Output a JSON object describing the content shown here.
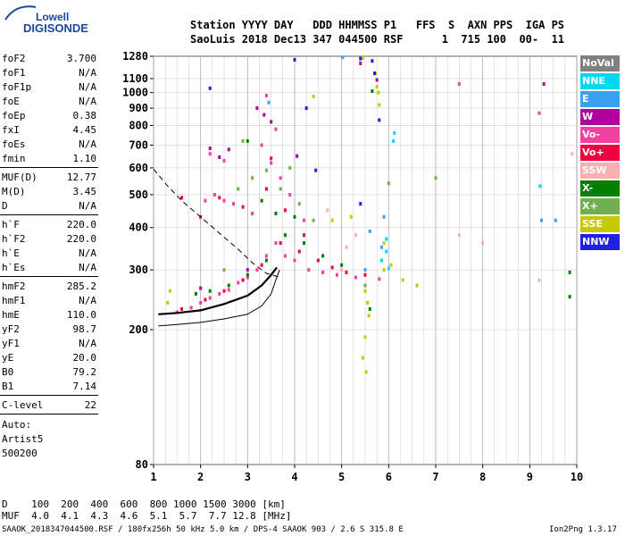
{
  "logo": {
    "line1": "Lowell",
    "line2": "DIGISONDE"
  },
  "header": {
    "line1": "Station YYYY DAY   DDD HHMMSS P1   FFS  S  AXN PPS  IGA PS",
    "line2": "SaoLuis 2018 Dec13 347 044500 RSF      1  715 100  00-  11"
  },
  "params": [
    {
      "label": "foF2",
      "value": "3.700"
    },
    {
      "label": "foF1",
      "value": "N/A"
    },
    {
      "label": "foF1p",
      "value": "N/A"
    },
    {
      "label": "foE",
      "value": "N/A"
    },
    {
      "label": "foEp",
      "value": "0.38"
    },
    {
      "label": "fxI",
      "value": "4.45"
    },
    {
      "label": "foEs",
      "value": "N/A"
    },
    {
      "label": "fmin",
      "value": "1.10"
    },
    {
      "label": "MUF(D)",
      "value": "12.77"
    },
    {
      "label": "M(D)",
      "value": "3.45"
    },
    {
      "label": "D",
      "value": "N/A"
    },
    {
      "label": "h`F",
      "value": "220.0"
    },
    {
      "label": "h`F2",
      "value": "220.0"
    },
    {
      "label": "h`E",
      "value": "N/A"
    },
    {
      "label": "h`Es",
      "value": "N/A"
    },
    {
      "label": "hmF2",
      "value": "285.2"
    },
    {
      "label": "hmF1",
      "value": "N/A"
    },
    {
      "label": "hmE",
      "value": "110.0"
    },
    {
      "label": "yF2",
      "value": "98.7"
    },
    {
      "label": "yF1",
      "value": "N/A"
    },
    {
      "label": "yE",
      "value": "20.0"
    },
    {
      "label": "B0",
      "value": "79.2"
    },
    {
      "label": "B1",
      "value": "7.14"
    },
    {
      "label": "C-level",
      "value": "22"
    }
  ],
  "auto": {
    "line1": "Auto:",
    "line2": "Artist5",
    "line3": "500200"
  },
  "legend": [
    {
      "label": "NoVal",
      "color": "#808080"
    },
    {
      "label": "NNE",
      "color": "#00d8f0"
    },
    {
      "label": "E",
      "color": "#3aa0f0"
    },
    {
      "label": "W",
      "color": "#b000a0"
    },
    {
      "label": "Vo-",
      "color": "#f040a0"
    },
    {
      "label": "Vo+",
      "color": "#f00040"
    },
    {
      "label": "SSW",
      "color": "#f8b0b0"
    },
    {
      "label": "X-",
      "color": "#008000"
    },
    {
      "label": "X+",
      "color": "#70b050"
    },
    {
      "label": "SSE",
      "color": "#c8c800"
    },
    {
      "label": "NNW",
      "color": "#2020e0"
    }
  ],
  "footer": {
    "d_line": "D    100  200  400  600  800 1000 1500 3000 [km]",
    "muf_line": "MUF  4.0  4.1  4.3  4.6  5.1  5.7  7.7 12.8 [MHz]",
    "file_line": "SAAOK_2018347044500.RSF / 180fx256h 50 kHz 5.0 km / DPS-4 SAAOK 903 / 2.6 S 315.8 E",
    "version": "Ion2Png 1.3.17"
  },
  "chart_data": {
    "type": "scatter",
    "title": "",
    "xlabel": "",
    "ylabel": "",
    "xlim": [
      1,
      10
    ],
    "ylim": [
      80,
      1280
    ],
    "y_scale": "log",
    "x_ticks": [
      1,
      2,
      3,
      4,
      5,
      6,
      7,
      8,
      9,
      10
    ],
    "y_ticks": [
      80,
      200,
      300,
      400,
      500,
      600,
      700,
      800,
      900,
      1000,
      1100,
      1280
    ],
    "grid": true,
    "legend_position": "right",
    "series": [
      {
        "name": "NNE",
        "color": "#00d8f0",
        "points": [
          [
            5.85,
            320
          ],
          [
            5.95,
            370
          ],
          [
            5.95,
            340
          ],
          [
            6.12,
            760
          ],
          [
            6.1,
            720
          ],
          [
            9.22,
            530
          ],
          [
            6.0,
            303
          ]
        ]
      },
      {
        "name": "E",
        "color": "#3aa0f0",
        "points": [
          [
            5.5,
            300
          ],
          [
            5.6,
            390
          ],
          [
            5.85,
            350
          ],
          [
            5.9,
            430
          ],
          [
            9.25,
            420
          ],
          [
            9.55,
            420
          ],
          [
            5.02,
            1270
          ],
          [
            3.45,
            935
          ]
        ]
      },
      {
        "name": "W",
        "color": "#b000a0",
        "points": [
          [
            2.2,
            685
          ],
          [
            2.4,
            645
          ],
          [
            2.6,
            680
          ],
          [
            3.2,
            900
          ],
          [
            3.35,
            860
          ],
          [
            3.5,
            820
          ],
          [
            4.05,
            650
          ],
          [
            5.75,
            1090
          ],
          [
            9.3,
            1060
          ],
          [
            5.4,
            1220
          ],
          [
            2.0,
            265
          ],
          [
            3.0,
            300
          ]
        ]
      },
      {
        "name": "Vo-",
        "color": "#f040a0",
        "points": [
          [
            1.5,
            225
          ],
          [
            1.8,
            232
          ],
          [
            2.0,
            240
          ],
          [
            2.2,
            248
          ],
          [
            2.4,
            255
          ],
          [
            2.6,
            262
          ],
          [
            2.8,
            275
          ],
          [
            3.0,
            285
          ],
          [
            3.2,
            300
          ],
          [
            3.4,
            330
          ],
          [
            3.6,
            360
          ],
          [
            3.8,
            330
          ],
          [
            4.0,
            320
          ],
          [
            4.3,
            300
          ],
          [
            4.6,
            295
          ],
          [
            4.9,
            290
          ],
          [
            5.3,
            285
          ],
          [
            5.8,
            282
          ],
          [
            2.1,
            480
          ],
          [
            2.3,
            500
          ],
          [
            2.5,
            480
          ],
          [
            2.7,
            470
          ],
          [
            3.1,
            440
          ],
          [
            2.2,
            660
          ],
          [
            2.5,
            630
          ],
          [
            3.3,
            700
          ],
          [
            3.5,
            620
          ],
          [
            3.7,
            560
          ],
          [
            3.9,
            500
          ],
          [
            4.2,
            420
          ],
          [
            3.6,
            780
          ],
          [
            3.4,
            980
          ],
          [
            7.5,
            1060
          ],
          [
            9.2,
            870
          ]
        ]
      },
      {
        "name": "Vo+",
        "color": "#f00040",
        "points": [
          [
            1.6,
            230
          ],
          [
            2.1,
            245
          ],
          [
            2.5,
            260
          ],
          [
            2.9,
            280
          ],
          [
            3.3,
            310
          ],
          [
            3.7,
            360
          ],
          [
            4.1,
            340
          ],
          [
            4.5,
            320
          ],
          [
            4.8,
            305
          ],
          [
            5.1,
            295
          ],
          [
            5.5,
            290
          ],
          [
            2.4,
            490
          ],
          [
            2.9,
            460
          ],
          [
            3.4,
            520
          ],
          [
            3.8,
            450
          ],
          [
            4.2,
            380
          ],
          [
            3.5,
            640
          ],
          [
            1.6,
            490
          ],
          [
            2.0,
            430
          ]
        ]
      },
      {
        "name": "SSW",
        "color": "#f8b0b0",
        "points": [
          [
            5.1,
            350
          ],
          [
            5.3,
            380
          ],
          [
            7.5,
            380
          ],
          [
            8.0,
            360
          ],
          [
            9.2,
            280
          ],
          [
            9.9,
            660
          ],
          [
            5.0,
            300
          ],
          [
            4.7,
            450
          ]
        ]
      },
      {
        "name": "X-",
        "color": "#008000",
        "points": [
          [
            2.2,
            260
          ],
          [
            2.6,
            270
          ],
          [
            3.0,
            290
          ],
          [
            3.4,
            320
          ],
          [
            3.8,
            380
          ],
          [
            4.2,
            360
          ],
          [
            4.6,
            330
          ],
          [
            5.0,
            310
          ],
          [
            3.0,
            720
          ],
          [
            3.3,
            480
          ],
          [
            3.6,
            440
          ],
          [
            9.85,
            295
          ],
          [
            9.85,
            250
          ],
          [
            5.65,
            1010
          ],
          [
            5.6,
            230
          ],
          [
            1.9,
            255
          ],
          [
            4.0,
            430
          ]
        ]
      },
      {
        "name": "X+",
        "color": "#70b050",
        "points": [
          [
            2.5,
            300
          ],
          [
            2.8,
            520
          ],
          [
            3.1,
            560
          ],
          [
            3.4,
            590
          ],
          [
            3.7,
            520
          ],
          [
            4.1,
            470
          ],
          [
            4.4,
            420
          ],
          [
            5.5,
            270
          ],
          [
            6.0,
            540
          ],
          [
            7.0,
            560
          ],
          [
            2.9,
            720
          ],
          [
            3.9,
            600
          ]
        ]
      },
      {
        "name": "SSE",
        "color": "#c8c800",
        "points": [
          [
            4.4,
            975
          ],
          [
            5.45,
            1265
          ],
          [
            5.75,
            1040
          ],
          [
            5.78,
            1000
          ],
          [
            5.8,
            920
          ],
          [
            5.72,
            1140
          ],
          [
            5.5,
            260
          ],
          [
            5.55,
            240
          ],
          [
            5.58,
            220
          ],
          [
            5.5,
            190
          ],
          [
            5.45,
            165
          ],
          [
            5.52,
            150
          ],
          [
            5.9,
            360
          ],
          [
            5.9,
            300
          ],
          [
            6.05,
            310
          ],
          [
            6.3,
            280
          ],
          [
            6.6,
            270
          ],
          [
            5.2,
            430
          ],
          [
            4.8,
            420
          ],
          [
            1.3,
            240
          ],
          [
            1.35,
            260
          ]
        ]
      },
      {
        "name": "NNW",
        "color": "#2020e0",
        "points": [
          [
            5.65,
            1240
          ],
          [
            4.0,
            1250
          ],
          [
            5.7,
            1140
          ],
          [
            5.4,
            470
          ],
          [
            4.25,
            900
          ],
          [
            5.4,
            1260
          ],
          [
            4.45,
            590
          ],
          [
            2.2,
            1030
          ],
          [
            5.8,
            830
          ]
        ]
      }
    ],
    "traced_curves": [
      {
        "name": "traced-trace-solid",
        "style": "solid",
        "points": [
          [
            1.1,
            205
          ],
          [
            1.5,
            207
          ],
          [
            2.0,
            210
          ],
          [
            2.5,
            215
          ],
          [
            3.0,
            222
          ],
          [
            3.3,
            235
          ],
          [
            3.5,
            255
          ],
          [
            3.6,
            280
          ],
          [
            3.68,
            300
          ]
        ]
      },
      {
        "name": "traced-trace-thick",
        "style": "thick",
        "points": [
          [
            1.1,
            222
          ],
          [
            1.5,
            224
          ],
          [
            2.0,
            228
          ],
          [
            2.5,
            238
          ],
          [
            3.0,
            252
          ],
          [
            3.3,
            270
          ],
          [
            3.5,
            290
          ],
          [
            3.62,
            305
          ]
        ]
      },
      {
        "name": "profile-dashed",
        "style": "dashed",
        "points": [
          [
            1.0,
            595
          ],
          [
            1.3,
            530
          ],
          [
            1.6,
            480
          ],
          [
            2.0,
            430
          ],
          [
            2.4,
            385
          ],
          [
            2.8,
            345
          ],
          [
            3.1,
            315
          ],
          [
            3.4,
            293
          ],
          [
            3.7,
            285
          ]
        ]
      }
    ]
  }
}
